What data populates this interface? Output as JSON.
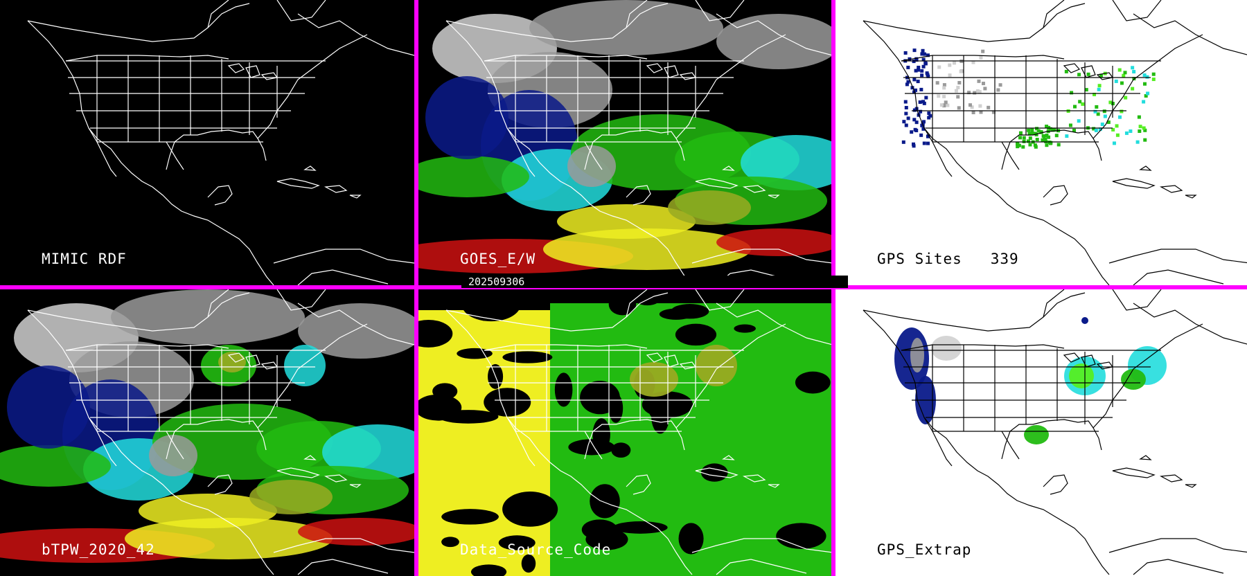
{
  "timestamp": "202509306",
  "panels": [
    {
      "id": "mimic-rdf",
      "label": "MIMIC RDF",
      "bg": "#000000",
      "theme": "dark",
      "style": "empty"
    },
    {
      "id": "goes-e-w",
      "label": "GOES_E/W",
      "bg": "#000000",
      "theme": "dark",
      "style": "satellite"
    },
    {
      "id": "gps-sites",
      "label": "GPS Sites   339",
      "bg": "#ffffff",
      "theme": "light",
      "style": "sites"
    },
    {
      "id": "btpw-2020-42",
      "label": "bTPW_2020_42",
      "bg": "#000000",
      "theme": "dark",
      "style": "satellite"
    },
    {
      "id": "data-source-code",
      "label": "Data_Source_Code",
      "bg": "#000000",
      "theme": "dark",
      "style": "source"
    },
    {
      "id": "gps-extrap",
      "label": "GPS_Extrap",
      "bg": "#ffffff",
      "theme": "light",
      "style": "extrap"
    }
  ],
  "colors": {
    "divider": "#ff00ff",
    "grey": "#9a9a9a",
    "lightgrey": "#d0d0d0",
    "darkblue": "#0a1a8a",
    "blue": "#1a3acc",
    "cyan": "#22dddd",
    "green": "#22bb11",
    "lime": "#55ee22",
    "olive": "#99aa22",
    "yellow": "#eeee22",
    "red": "#cc1111"
  }
}
